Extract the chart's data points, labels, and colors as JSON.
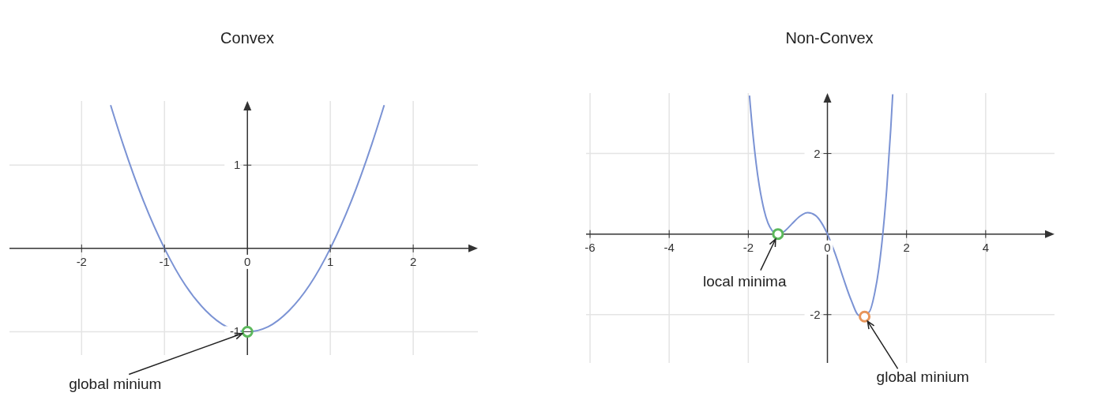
{
  "chart_data": [
    {
      "type": "line",
      "title": "Convex",
      "xlim": [
        -2.87,
        2.78
      ],
      "ylim": [
        -1.28,
        1.77
      ],
      "xticks": [
        -2,
        -1,
        0,
        1,
        2
      ],
      "yticks": [
        -1,
        1
      ],
      "grid": true,
      "series": [
        {
          "color": "#7b93d4",
          "x": [
            -1.65,
            -1.5,
            -1.25,
            -1,
            -0.75,
            -0.5,
            -0.25,
            0,
            0.25,
            0.5,
            0.75,
            1,
            1.25,
            1.5,
            1.65
          ],
          "values": [
            1.72,
            1.25,
            0.56,
            0,
            -0.44,
            -0.75,
            -0.94,
            -1,
            -0.94,
            -0.75,
            -0.44,
            0,
            0.56,
            1.25,
            1.72
          ]
        },
        {
          "type": "scatter",
          "marker": "circle",
          "color": "#5cb85c",
          "x": [
            0
          ],
          "values": [
            -1
          ]
        }
      ],
      "annotations": [
        {
          "text": "global minium",
          "x": 0,
          "y": -1
        }
      ]
    },
    {
      "type": "line",
      "title": "Non-Convex",
      "xlim": [
        -6.1,
        5.74
      ],
      "ylim": [
        -3.2,
        3.5
      ],
      "xticks": [
        -6,
        -4,
        -2,
        0,
        2,
        4
      ],
      "yticks": [
        -2,
        2
      ],
      "grid": true,
      "series": [
        {
          "color": "#7b93d4",
          "x": [
            -1.97,
            -1.95,
            -1.8,
            -1.6,
            -1.4,
            -1.25,
            -1.1,
            -0.9,
            -0.7,
            -0.5,
            -0.3,
            -0.15,
            0,
            0.2,
            0.4,
            0.6,
            0.8,
            1.05,
            1.2,
            1.3,
            1.4,
            1.5,
            1.6,
            1.65
          ],
          "values": [
            3.44,
            3.2,
            1.74,
            0.59,
            0.09,
            0,
            0.06,
            0.25,
            0.44,
            0.53,
            0.46,
            0.28,
            0,
            -0.5,
            -1.09,
            -1.64,
            -2.02,
            -1.94,
            -1.44,
            -0.85,
            0,
            1.13,
            2.6,
            3.47
          ]
        },
        {
          "type": "scatter",
          "marker": "circle",
          "color": "#5cb85c",
          "x": [
            -1.25
          ],
          "values": [
            0
          ]
        },
        {
          "type": "scatter",
          "marker": "circle",
          "color": "#e8955a",
          "x": [
            0.94
          ],
          "values": [
            -2.05
          ]
        }
      ],
      "annotations": [
        {
          "text": "local minima",
          "x": -1.25,
          "y": 0
        },
        {
          "text": "global minium",
          "x": 0.94,
          "y": -2.05
        }
      ]
    }
  ]
}
